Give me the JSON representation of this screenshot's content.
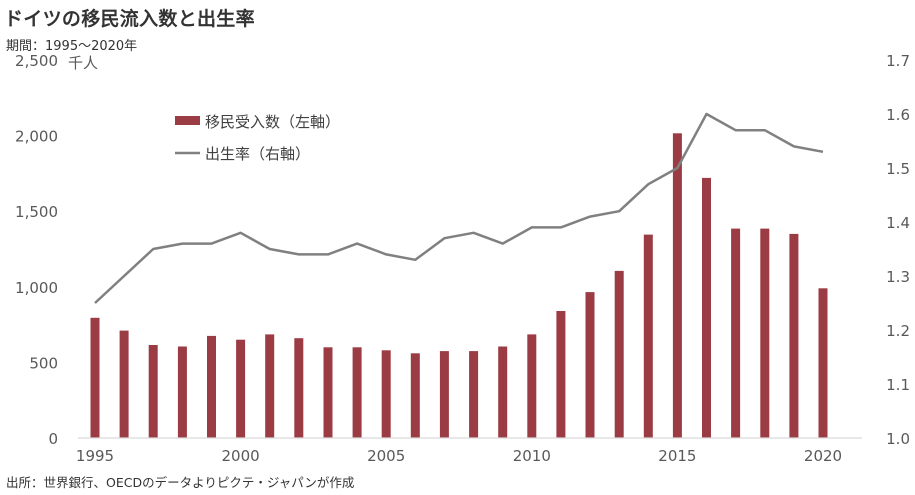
{
  "header": {
    "title": "ドイツの移民流入数と出生率",
    "period": "期間：1995～2020年"
  },
  "footer": {
    "source": "出所：世界銀行、OECDのデータよりピクテ・ジャパンが作成"
  },
  "chart_data": {
    "type": "bar+line",
    "title": "ドイツの移民流入数と出生率",
    "years": [
      1995,
      1996,
      1997,
      1998,
      1999,
      2000,
      2001,
      2002,
      2003,
      2004,
      2005,
      2006,
      2007,
      2008,
      2009,
      2010,
      2011,
      2012,
      2013,
      2014,
      2015,
      2016,
      2017,
      2018,
      2019,
      2020
    ],
    "x_tick_labels": [
      "1995",
      "2000",
      "2005",
      "2010",
      "2015",
      "2020"
    ],
    "left_axis": {
      "unit": "千人",
      "range": [
        0,
        2500
      ],
      "tick_labels": [
        "0",
        "500",
        "1,000",
        "1,500",
        "2,000",
        "2,500"
      ],
      "tick_values": [
        0,
        500,
        1000,
        1500,
        2000,
        2500
      ]
    },
    "right_axis": {
      "range": [
        1.0,
        1.7
      ],
      "tick_labels": [
        "1.0",
        "1.1",
        "1.2",
        "1.3",
        "1.4",
        "1.5",
        "1.6",
        "1.7"
      ],
      "tick_values": [
        1.0,
        1.1,
        1.2,
        1.3,
        1.4,
        1.5,
        1.6,
        1.7
      ]
    },
    "series": [
      {
        "name": "移民受入数（左軸）",
        "type": "bar",
        "axis": "left",
        "color": "#9B3B43",
        "values": [
          795,
          710,
          615,
          605,
          675,
          650,
          685,
          660,
          600,
          600,
          580,
          560,
          575,
          575,
          605,
          685,
          840,
          965,
          1105,
          1345,
          2015,
          1720,
          1385,
          1385,
          1350,
          990
        ]
      },
      {
        "name": "出生率（右軸）",
        "type": "line",
        "axis": "right",
        "color": "#808080",
        "values": [
          1.25,
          1.3,
          1.35,
          1.36,
          1.36,
          1.38,
          1.35,
          1.34,
          1.34,
          1.36,
          1.34,
          1.33,
          1.37,
          1.38,
          1.36,
          1.39,
          1.39,
          1.41,
          1.42,
          1.47,
          1.5,
          1.6,
          1.57,
          1.57,
          1.54,
          1.53
        ]
      }
    ],
    "legend_position": "top-left",
    "grid": false
  }
}
